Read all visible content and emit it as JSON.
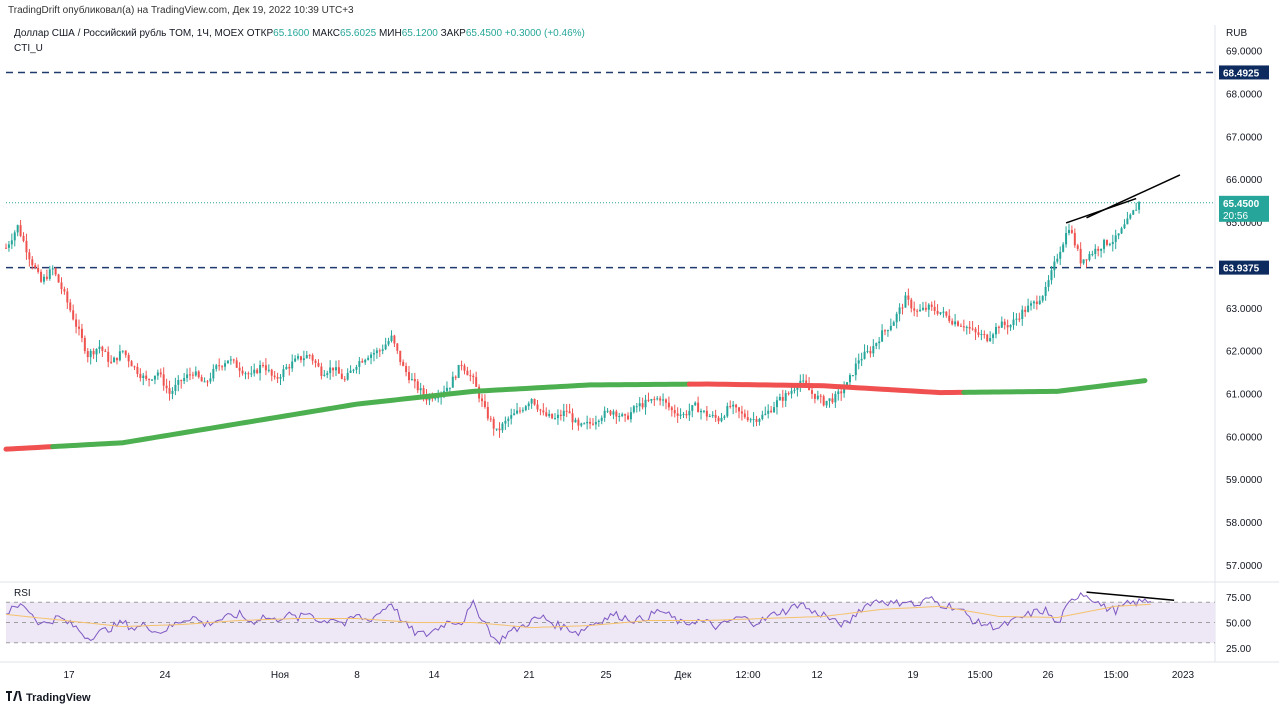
{
  "header": {
    "publisher_line": "TradingDrift опубликовал(а) на TradingView.com, Дек 19, 2022 10:39 UTC+3"
  },
  "symbol_info": {
    "name": "Доллар США / Российский рубль TOM, 1Ч, MOEX",
    "open_label": "ОТКР",
    "open_value": "65.1600",
    "high_label": "МАКС",
    "high_value": "65.6025",
    "low_label": "МИН",
    "low_value": "65.1200",
    "close_label": "ЗАКР",
    "close_value": "65.4500",
    "change": "+0.3000 (+0.46%)"
  },
  "indicator_name": "CTI_U",
  "footer": {
    "brand": "TradingView"
  },
  "colors": {
    "up": "#26a69a",
    "down": "#ef5350",
    "ma_green": "#4caf50",
    "ma_red": "#f05050",
    "hline": "#1e3a6e",
    "rsi_line": "#7e57c2",
    "rsi_ma": "#f5c26b",
    "rsi_band": "#ede7f6",
    "price_badge": "#26a69a",
    "level_badge": "#0d2b5e"
  },
  "chart_data": [
    {
      "type": "candlestick",
      "title": "",
      "currency": "RUB",
      "y_ticks": [
        "69.0000",
        "68.0000",
        "67.0000",
        "66.0000",
        "65.0000",
        "64.0000",
        "63.0000",
        "62.0000",
        "61.0000",
        "60.0000",
        "59.0000",
        "58.0000",
        "57.0000"
      ],
      "ylim": [
        56.6,
        69.6
      ],
      "x_ticks": [
        "17",
        "24",
        "Ноя",
        "8",
        "14",
        "21",
        "25",
        "Дек",
        "12:00",
        "12",
        "19",
        "15:00",
        "26",
        "15:00",
        "2023"
      ],
      "horizontal_levels": [
        "68.4925",
        "63.9375"
      ],
      "last_price": "65.4500",
      "countdown": "20:56",
      "price_path": [
        [
          0,
          64.4
        ],
        [
          2,
          64.9
        ],
        [
          4,
          64.2
        ],
        [
          6,
          63.6
        ],
        [
          8,
          63.9
        ],
        [
          10,
          63.3
        ],
        [
          12,
          62.6
        ],
        [
          14,
          61.9
        ],
        [
          16,
          62.1
        ],
        [
          18,
          61.7
        ],
        [
          20,
          62.0
        ],
        [
          22,
          61.6
        ],
        [
          24,
          61.3
        ],
        [
          26,
          61.5
        ],
        [
          28,
          61.0
        ],
        [
          30,
          61.3
        ],
        [
          32,
          61.5
        ],
        [
          34,
          61.2
        ],
        [
          36,
          61.6
        ],
        [
          38,
          61.8
        ],
        [
          40,
          61.6
        ],
        [
          42,
          61.4
        ],
        [
          44,
          61.7
        ],
        [
          46,
          61.3
        ],
        [
          48,
          61.6
        ],
        [
          50,
          61.8
        ],
        [
          52,
          61.9
        ],
        [
          54,
          61.5
        ],
        [
          56,
          61.6
        ],
        [
          58,
          61.3
        ],
        [
          60,
          61.7
        ],
        [
          62,
          61.9
        ],
        [
          64,
          62.0
        ],
        [
          66,
          62.3
        ],
        [
          68,
          61.6
        ],
        [
          70,
          61.2
        ],
        [
          72,
          60.9
        ],
        [
          74,
          61.0
        ],
        [
          76,
          61.2
        ],
        [
          78,
          61.7
        ],
        [
          80,
          61.3
        ],
        [
          82,
          60.6
        ],
        [
          84,
          60.1
        ],
        [
          86,
          60.4
        ],
        [
          88,
          60.6
        ],
        [
          90,
          60.9
        ],
        [
          92,
          60.5
        ],
        [
          94,
          60.4
        ],
        [
          96,
          60.6
        ],
        [
          98,
          60.2
        ],
        [
          100,
          60.3
        ],
        [
          102,
          60.5
        ],
        [
          104,
          60.6
        ],
        [
          106,
          60.4
        ],
        [
          108,
          60.7
        ],
        [
          110,
          60.8
        ],
        [
          112,
          60.9
        ],
        [
          114,
          60.6
        ],
        [
          116,
          60.5
        ],
        [
          118,
          60.7
        ],
        [
          120,
          60.5
        ],
        [
          122,
          60.4
        ],
        [
          124,
          60.7
        ],
        [
          126,
          60.5
        ],
        [
          128,
          60.4
        ],
        [
          130,
          60.5
        ],
        [
          132,
          60.8
        ],
        [
          134,
          61.0
        ],
        [
          136,
          61.3
        ],
        [
          138,
          61.0
        ],
        [
          140,
          60.8
        ],
        [
          142,
          60.9
        ],
        [
          144,
          61.2
        ],
        [
          146,
          61.8
        ],
        [
          148,
          62.0
        ],
        [
          150,
          62.4
        ],
        [
          152,
          62.7
        ],
        [
          154,
          63.2
        ],
        [
          156,
          62.9
        ],
        [
          158,
          63.0
        ],
        [
          160,
          62.9
        ],
        [
          162,
          62.7
        ],
        [
          164,
          62.6
        ],
        [
          166,
          62.4
        ],
        [
          168,
          62.3
        ],
        [
          170,
          62.6
        ],
        [
          172,
          62.6
        ],
        [
          174,
          62.9
        ],
        [
          176,
          63.1
        ],
        [
          178,
          63.4
        ],
        [
          180,
          64.2
        ],
        [
          182,
          64.9
        ],
        [
          184,
          64.1
        ],
        [
          186,
          64.3
        ],
        [
          188,
          64.5
        ],
        [
          190,
          64.6
        ],
        [
          192,
          65.0
        ],
        [
          194,
          65.45
        ]
      ],
      "moving_average": {
        "points": [
          [
            0,
            59.7
          ],
          [
            20,
            59.85
          ],
          [
            40,
            60.3
          ],
          [
            60,
            60.75
          ],
          [
            80,
            61.05
          ],
          [
            100,
            61.2
          ],
          [
            120,
            61.22
          ],
          [
            140,
            61.18
          ],
          [
            160,
            61.02
          ],
          [
            180,
            61.05
          ],
          [
            195,
            61.3
          ]
        ],
        "segments": [
          {
            "from": 0,
            "to": 8,
            "color": "red"
          },
          {
            "from": 8,
            "to": 117,
            "color": "green"
          },
          {
            "from": 117,
            "to": 164,
            "color": "red"
          },
          {
            "from": 164,
            "to": 195,
            "color": "green"
          }
        ]
      },
      "trendline": [
        [
          185,
          65.1
        ],
        [
          201,
          66.1
        ]
      ]
    },
    {
      "type": "line",
      "title": "RSI",
      "y_ticks": [
        "75.00",
        "50.00",
        "25.00"
      ],
      "ylim": [
        15,
        88
      ],
      "band": [
        30,
        70
      ],
      "rsi_path": [
        [
          0,
          60
        ],
        [
          3,
          68
        ],
        [
          6,
          48
        ],
        [
          9,
          55
        ],
        [
          12,
          45
        ],
        [
          14,
          35
        ],
        [
          16,
          40
        ],
        [
          18,
          45
        ],
        [
          20,
          50
        ],
        [
          22,
          44
        ],
        [
          24,
          48
        ],
        [
          26,
          40
        ],
        [
          28,
          45
        ],
        [
          30,
          52
        ],
        [
          32,
          56
        ],
        [
          34,
          48
        ],
        [
          36,
          52
        ],
        [
          38,
          55
        ],
        [
          40,
          58
        ],
        [
          42,
          50
        ],
        [
          44,
          56
        ],
        [
          46,
          52
        ],
        [
          48,
          58
        ],
        [
          50,
          54
        ],
        [
          52,
          60
        ],
        [
          54,
          50
        ],
        [
          56,
          55
        ],
        [
          58,
          48
        ],
        [
          60,
          57
        ],
        [
          62,
          52
        ],
        [
          64,
          60
        ],
        [
          66,
          70
        ],
        [
          68,
          50
        ],
        [
          70,
          40
        ],
        [
          72,
          38
        ],
        [
          74,
          45
        ],
        [
          76,
          52
        ],
        [
          78,
          50
        ],
        [
          80,
          68
        ],
        [
          82,
          50
        ],
        [
          84,
          30
        ],
        [
          86,
          40
        ],
        [
          88,
          45
        ],
        [
          90,
          52
        ],
        [
          92,
          55
        ],
        [
          94,
          48
        ],
        [
          96,
          45
        ],
        [
          98,
          40
        ],
        [
          100,
          48
        ],
        [
          102,
          52
        ],
        [
          104,
          58
        ],
        [
          106,
          55
        ],
        [
          108,
          52
        ],
        [
          110,
          56
        ],
        [
          112,
          62
        ],
        [
          114,
          55
        ],
        [
          116,
          48
        ],
        [
          118,
          52
        ],
        [
          120,
          50
        ],
        [
          122,
          45
        ],
        [
          124,
          52
        ],
        [
          126,
          55
        ],
        [
          128,
          50
        ],
        [
          130,
          53
        ],
        [
          132,
          60
        ],
        [
          134,
          62
        ],
        [
          136,
          70
        ],
        [
          138,
          60
        ],
        [
          140,
          58
        ],
        [
          142,
          50
        ],
        [
          144,
          48
        ],
        [
          146,
          62
        ],
        [
          148,
          70
        ],
        [
          150,
          72
        ],
        [
          152,
          68
        ],
        [
          154,
          72
        ],
        [
          156,
          66
        ],
        [
          158,
          74
        ],
        [
          160,
          68
        ],
        [
          162,
          66
        ],
        [
          164,
          60
        ],
        [
          166,
          50
        ],
        [
          168,
          48
        ],
        [
          170,
          45
        ],
        [
          172,
          50
        ],
        [
          174,
          55
        ],
        [
          176,
          60
        ],
        [
          178,
          62
        ],
        [
          180,
          48
        ],
        [
          182,
          68
        ],
        [
          184,
          80
        ],
        [
          186,
          74
        ],
        [
          188,
          65
        ],
        [
          190,
          62
        ],
        [
          192,
          68
        ],
        [
          194,
          70
        ],
        [
          196,
          72
        ]
      ],
      "rsi_ma_path": [
        [
          0,
          58
        ],
        [
          10,
          52
        ],
        [
          20,
          46
        ],
        [
          30,
          48
        ],
        [
          40,
          52
        ],
        [
          50,
          54
        ],
        [
          60,
          54
        ],
        [
          70,
          50
        ],
        [
          80,
          50
        ],
        [
          90,
          45
        ],
        [
          100,
          47
        ],
        [
          110,
          52
        ],
        [
          120,
          52
        ],
        [
          130,
          54
        ],
        [
          140,
          56
        ],
        [
          150,
          63
        ],
        [
          160,
          66
        ],
        [
          170,
          56
        ],
        [
          180,
          55
        ],
        [
          190,
          66
        ],
        [
          196,
          68
        ]
      ],
      "trendline": [
        [
          185,
          80
        ],
        [
          200,
          72
        ]
      ]
    }
  ]
}
